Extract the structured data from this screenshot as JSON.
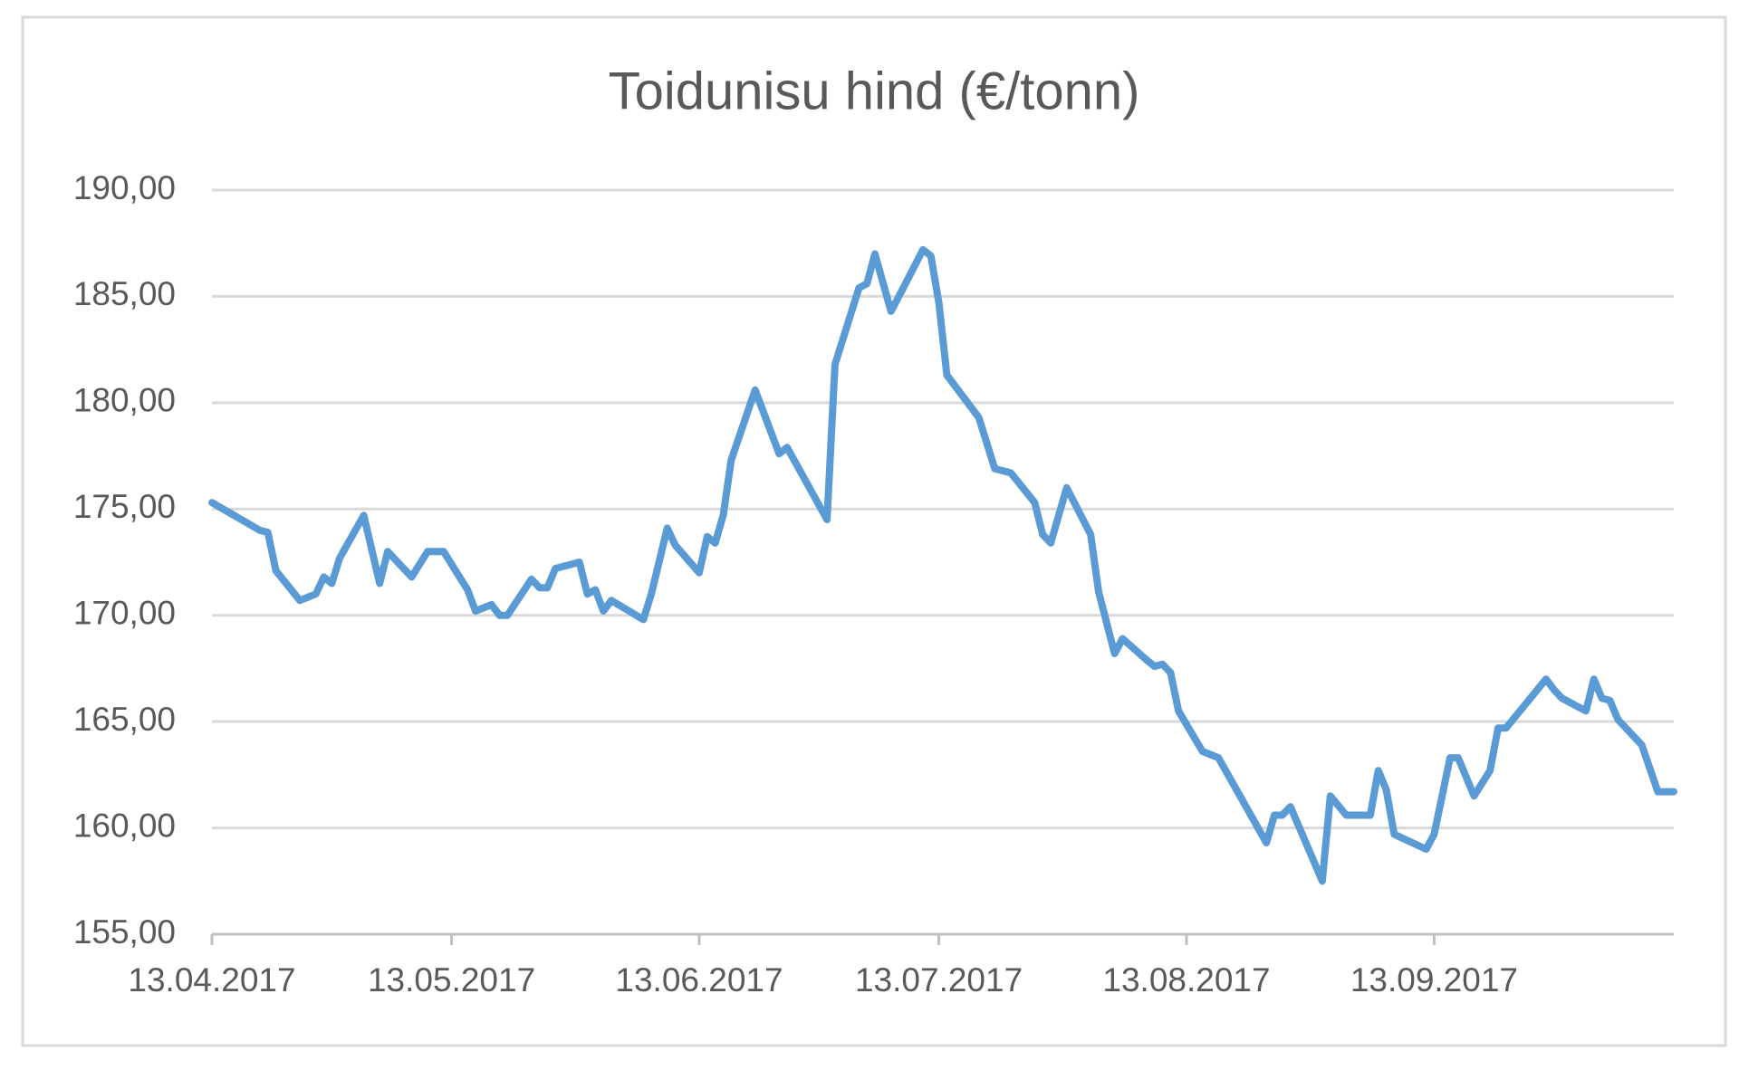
{
  "chart_data": {
    "type": "line",
    "title": "Toidunisu hind (€/tonn)",
    "x": [
      "2017-04-13",
      "2017-04-19",
      "2017-04-20",
      "2017-04-21",
      "2017-04-24",
      "2017-04-26",
      "2017-04-27",
      "2017-04-28",
      "2017-04-29",
      "2017-05-02",
      "2017-05-04",
      "2017-05-05",
      "2017-05-08",
      "2017-05-10",
      "2017-05-12",
      "2017-05-15",
      "2017-05-16",
      "2017-05-18",
      "2017-05-19",
      "2017-05-20",
      "2017-05-23",
      "2017-05-24",
      "2017-05-25",
      "2017-05-26",
      "2017-05-29",
      "2017-05-30",
      "2017-05-31",
      "2017-06-01",
      "2017-06-02",
      "2017-06-06",
      "2017-06-07",
      "2017-06-09",
      "2017-06-10",
      "2017-06-13",
      "2017-06-14",
      "2017-06-15",
      "2017-06-16",
      "2017-06-17",
      "2017-06-20",
      "2017-06-23",
      "2017-06-24",
      "2017-06-29",
      "2017-06-30",
      "2017-07-03",
      "2017-07-04",
      "2017-07-05",
      "2017-07-07",
      "2017-07-08",
      "2017-07-11",
      "2017-07-12",
      "2017-07-13",
      "2017-07-14",
      "2017-07-18",
      "2017-07-20",
      "2017-07-22",
      "2017-07-25",
      "2017-07-26",
      "2017-07-27",
      "2017-07-29",
      "2017-08-01",
      "2017-08-02",
      "2017-08-04",
      "2017-08-05",
      "2017-08-08",
      "2017-08-09",
      "2017-08-10",
      "2017-08-11",
      "2017-08-12",
      "2017-08-15",
      "2017-08-17",
      "2017-08-23",
      "2017-08-24",
      "2017-08-25",
      "2017-08-26",
      "2017-08-30",
      "2017-08-31",
      "2017-09-02",
      "2017-09-05",
      "2017-09-06",
      "2017-09-07",
      "2017-09-08",
      "2017-09-12",
      "2017-09-13",
      "2017-09-15",
      "2017-09-16",
      "2017-09-18",
      "2017-09-20",
      "2017-09-21",
      "2017-09-22",
      "2017-09-27",
      "2017-09-28",
      "2017-09-29",
      "2017-10-02",
      "2017-10-03",
      "2017-10-04",
      "2017-10-05",
      "2017-10-06",
      "2017-10-09",
      "2017-10-11",
      "2017-10-13"
    ],
    "series": [
      {
        "name": "Toidunisu",
        "color": "#5b9bd5",
        "values": [
          175.3,
          174.0,
          173.9,
          172.1,
          170.7,
          171.0,
          171.8,
          171.5,
          172.7,
          174.7,
          171.5,
          173.0,
          171.8,
          173.0,
          173.0,
          171.2,
          170.2,
          170.5,
          170.0,
          170.0,
          171.7,
          171.3,
          171.3,
          172.2,
          172.5,
          171.0,
          171.2,
          170.2,
          170.7,
          169.8,
          171.0,
          174.1,
          173.3,
          172.0,
          173.7,
          173.4,
          174.7,
          177.3,
          180.6,
          177.6,
          177.9,
          174.5,
          181.8,
          185.4,
          185.6,
          187.0,
          184.3,
          185.0,
          187.2,
          186.9,
          184.7,
          181.3,
          179.3,
          176.9,
          176.7,
          175.3,
          173.8,
          173.4,
          176.0,
          173.8,
          171.1,
          168.2,
          168.9,
          167.9,
          167.6,
          167.7,
          167.3,
          165.5,
          163.6,
          163.3,
          159.3,
          160.6,
          160.6,
          161.0,
          157.5,
          161.5,
          160.6,
          160.6,
          162.7,
          161.8,
          159.7,
          159.0,
          159.7,
          163.3,
          163.3,
          161.5,
          162.7,
          164.7,
          164.7,
          167.0,
          166.5,
          166.1,
          165.5,
          167.0,
          166.1,
          166.0,
          165.1,
          163.9,
          161.7,
          161.7
        ]
      }
    ],
    "xlim": [
      "2017-04-13",
      "2017-10-13"
    ],
    "xticks": [
      {
        "value": "2017-04-13",
        "label": "13.04.2017"
      },
      {
        "value": "2017-05-13",
        "label": "13.05.2017"
      },
      {
        "value": "2017-06-13",
        "label": "13.06.2017"
      },
      {
        "value": "2017-07-13",
        "label": "13.07.2017"
      },
      {
        "value": "2017-08-13",
        "label": "13.08.2017"
      },
      {
        "value": "2017-09-13",
        "label": "13.09.2017"
      }
    ],
    "ylim": [
      155,
      190
    ],
    "yticks": [
      {
        "value": 155,
        "label": "155,00"
      },
      {
        "value": 160,
        "label": "160,00"
      },
      {
        "value": 165,
        "label": "165,00"
      },
      {
        "value": 170,
        "label": "170,00"
      },
      {
        "value": 175,
        "label": "175,00"
      },
      {
        "value": 180,
        "label": "180,00"
      },
      {
        "value": 185,
        "label": "185,00"
      },
      {
        "value": 190,
        "label": "190,00"
      }
    ],
    "grid": true
  }
}
